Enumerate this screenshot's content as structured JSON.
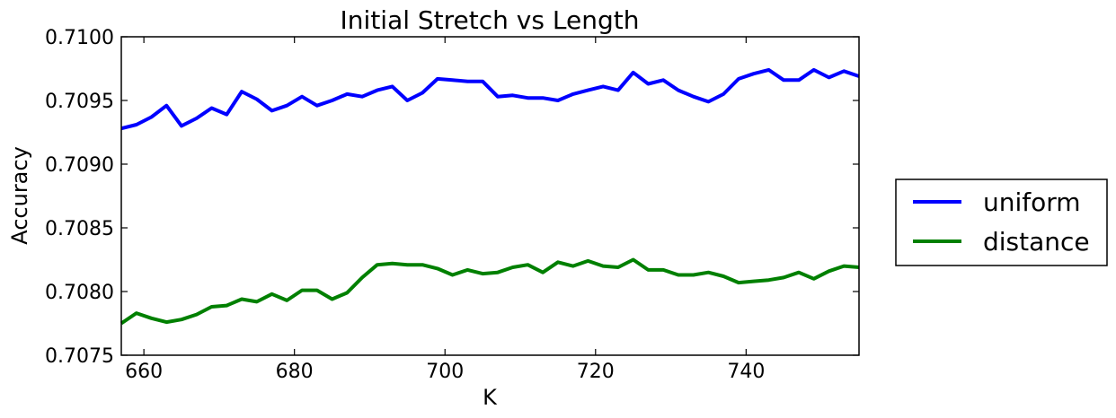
{
  "chart_data": {
    "type": "line",
    "title": "Initial Stretch vs Length",
    "xlabel": "K",
    "ylabel": "Accuracy",
    "xlim": [
      657,
      755
    ],
    "ylim": [
      0.7075,
      0.71
    ],
    "xticks": [
      660,
      680,
      700,
      720,
      740
    ],
    "yticks": [
      0.7075,
      0.708,
      0.7085,
      0.709,
      0.7095,
      0.71
    ],
    "ytick_labels": [
      "0.7075",
      "0.7080",
      "0.7085",
      "0.7090",
      "0.7095",
      "0.7100"
    ],
    "legend_position": "outside-right",
    "grid": false,
    "x": [
      657,
      659,
      661,
      663,
      665,
      667,
      669,
      671,
      673,
      675,
      677,
      679,
      681,
      683,
      685,
      687,
      689,
      691,
      693,
      695,
      697,
      699,
      701,
      703,
      705,
      707,
      709,
      711,
      713,
      715,
      717,
      719,
      721,
      723,
      725,
      727,
      729,
      731,
      733,
      735,
      737,
      739,
      741,
      743,
      745,
      747,
      749,
      751,
      753,
      755
    ],
    "series": [
      {
        "name": "uniform",
        "color": "#0000ff",
        "values": [
          0.70928,
          0.70931,
          0.70937,
          0.70946,
          0.7093,
          0.70936,
          0.70944,
          0.70939,
          0.70957,
          0.70951,
          0.70942,
          0.70946,
          0.70953,
          0.70946,
          0.7095,
          0.70955,
          0.70953,
          0.70958,
          0.70961,
          0.7095,
          0.70956,
          0.70967,
          0.70966,
          0.70965,
          0.70965,
          0.70953,
          0.70954,
          0.70952,
          0.70952,
          0.7095,
          0.70955,
          0.70958,
          0.70961,
          0.70958,
          0.70972,
          0.70963,
          0.70966,
          0.70958,
          0.70953,
          0.70949,
          0.70955,
          0.70967,
          0.70971,
          0.70974,
          0.70966,
          0.70966,
          0.70974,
          0.70968,
          0.70973,
          0.70969
        ]
      },
      {
        "name": "distance",
        "color": "#008000",
        "values": [
          0.70775,
          0.70783,
          0.70779,
          0.70776,
          0.70778,
          0.70782,
          0.70788,
          0.70789,
          0.70794,
          0.70792,
          0.70798,
          0.70793,
          0.70801,
          0.70801,
          0.70794,
          0.70799,
          0.70811,
          0.70821,
          0.70822,
          0.70821,
          0.70821,
          0.70818,
          0.70813,
          0.70817,
          0.70814,
          0.70815,
          0.70819,
          0.70821,
          0.70815,
          0.70823,
          0.7082,
          0.70824,
          0.7082,
          0.70819,
          0.70825,
          0.70817,
          0.70817,
          0.70813,
          0.70813,
          0.70815,
          0.70812,
          0.70807,
          0.70808,
          0.70809,
          0.70811,
          0.70815,
          0.7081,
          0.70816,
          0.7082,
          0.70819
        ]
      }
    ]
  }
}
